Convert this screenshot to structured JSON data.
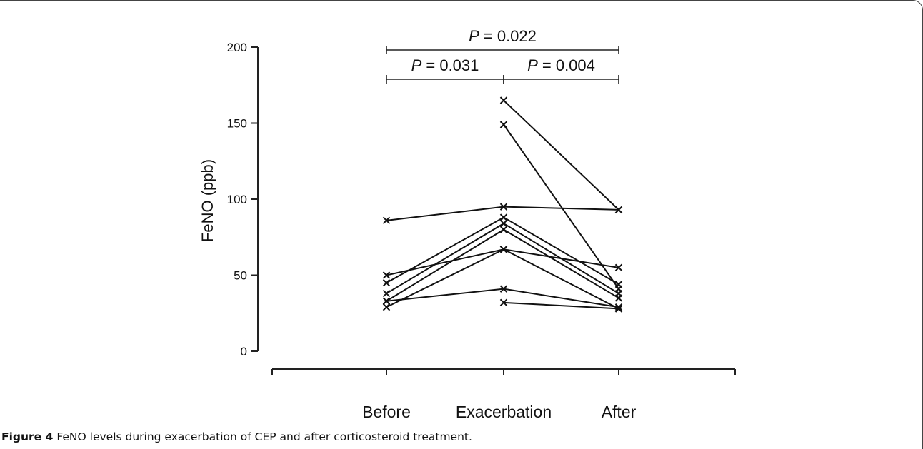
{
  "chart_data": {
    "type": "line",
    "title": "",
    "ylabel": "FeNO (ppb)",
    "xlabel": "",
    "categories": [
      "Before",
      "Exacerbation",
      "After"
    ],
    "ylim": [
      0,
      200
    ],
    "yticks": [
      0,
      50,
      100,
      150,
      200
    ],
    "marker": "x",
    "grid": false,
    "series": [
      {
        "values": [
          86,
          95,
          93
        ]
      },
      {
        "values": [
          50,
          67,
          55
        ]
      },
      {
        "values": [
          45,
          88,
          44
        ]
      },
      {
        "values": [
          38,
          84,
          38
        ]
      },
      {
        "values": [
          33,
          80,
          35
        ]
      },
      {
        "values": [
          29,
          67,
          28
        ]
      },
      {
        "values": [
          33,
          41,
          29
        ]
      },
      {
        "values": [
          null,
          165,
          93
        ]
      },
      {
        "values": [
          null,
          149,
          41
        ]
      },
      {
        "values": [
          null,
          32,
          28
        ]
      }
    ],
    "comparisons": [
      {
        "from": "Before",
        "to": "After",
        "label_prefix": "P",
        "label_value": "= 0.022"
      },
      {
        "from": "Before",
        "to": "Exacerbation",
        "label_prefix": "P",
        "label_value": "= 0.031"
      },
      {
        "from": "Exacerbation",
        "to": "After",
        "label_prefix": "P",
        "label_value": "= 0.004"
      }
    ]
  },
  "caption": {
    "label": "Figure 4",
    "text": "FeNO levels during exacerbation of CEP and after corticosteroid treatment."
  }
}
